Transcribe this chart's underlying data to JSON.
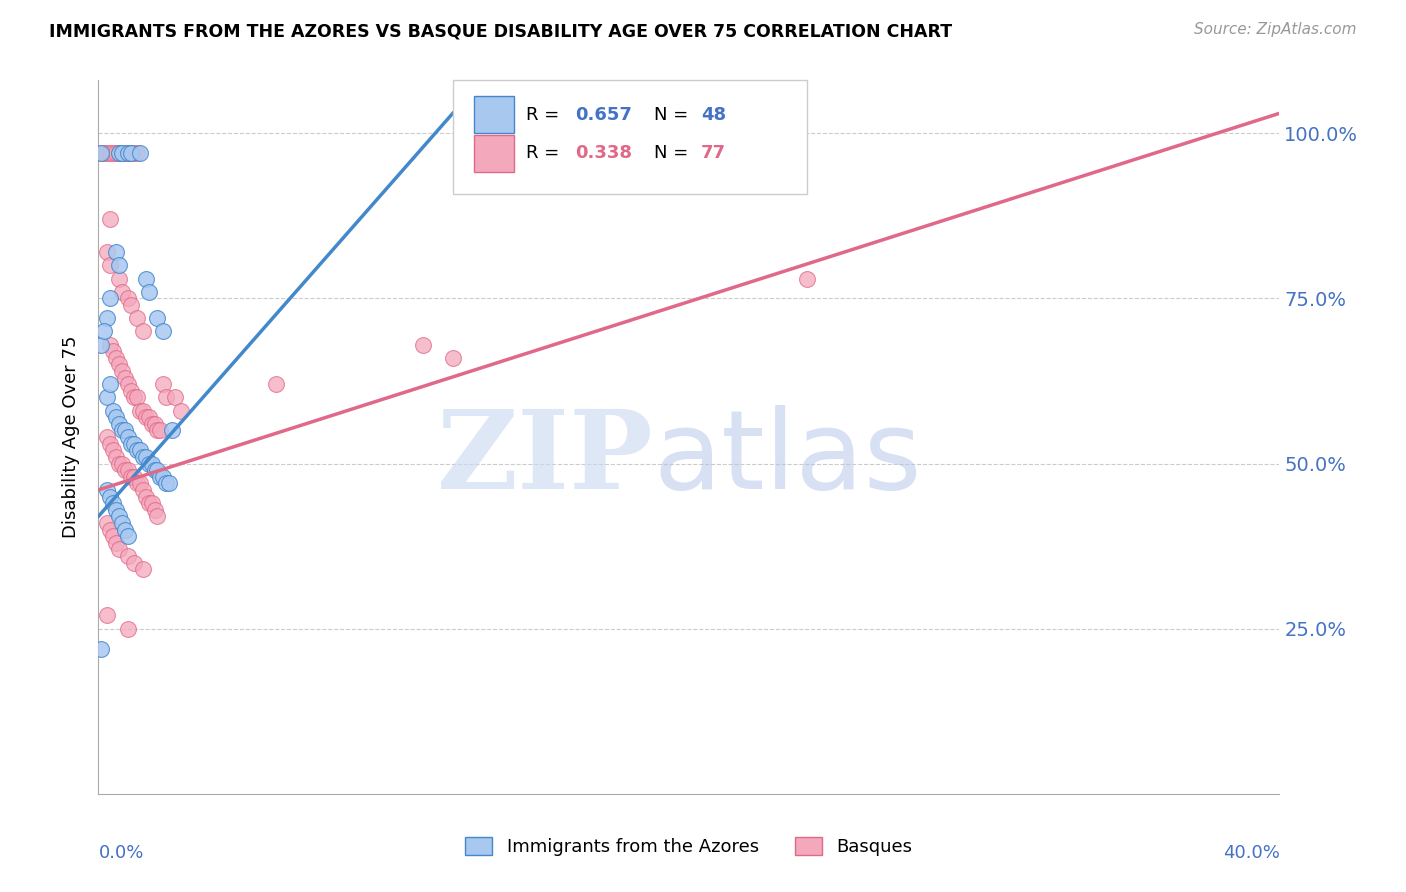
{
  "title": "IMMIGRANTS FROM THE AZORES VS BASQUE DISABILITY AGE OVER 75 CORRELATION CHART",
  "source": "Source: ZipAtlas.com",
  "ylabel": "Disability Age Over 75",
  "xlim": [
    0.0,
    0.4
  ],
  "ylim": [
    0.0,
    1.08
  ],
  "yticks": [
    0.25,
    0.5,
    0.75,
    1.0
  ],
  "ytick_labels": [
    "25.0%",
    "50.0%",
    "75.0%",
    "100.0%"
  ],
  "color_blue": "#A8C8F0",
  "color_pink": "#F4A8BC",
  "line_blue": "#4488CC",
  "line_pink": "#E06888",
  "trendline_blue_x0": 0.0,
  "trendline_blue_y0": 0.42,
  "trendline_blue_x1": 0.12,
  "trendline_blue_y1": 1.03,
  "trendline_pink_x0": 0.0,
  "trendline_pink_y0": 0.46,
  "trendline_pink_x1": 0.4,
  "trendline_pink_y1": 1.03,
  "azores_points": [
    [
      0.001,
      0.97
    ],
    [
      0.007,
      0.97
    ],
    [
      0.008,
      0.97
    ],
    [
      0.01,
      0.97
    ],
    [
      0.011,
      0.97
    ],
    [
      0.014,
      0.97
    ],
    [
      0.003,
      0.72
    ],
    [
      0.004,
      0.75
    ],
    [
      0.006,
      0.82
    ],
    [
      0.007,
      0.8
    ],
    [
      0.016,
      0.78
    ],
    [
      0.017,
      0.76
    ],
    [
      0.02,
      0.72
    ],
    [
      0.022,
      0.7
    ],
    [
      0.001,
      0.68
    ],
    [
      0.002,
      0.7
    ],
    [
      0.003,
      0.6
    ],
    [
      0.004,
      0.62
    ],
    [
      0.005,
      0.58
    ],
    [
      0.006,
      0.57
    ],
    [
      0.007,
      0.56
    ],
    [
      0.008,
      0.55
    ],
    [
      0.009,
      0.55
    ],
    [
      0.01,
      0.54
    ],
    [
      0.011,
      0.53
    ],
    [
      0.012,
      0.53
    ],
    [
      0.013,
      0.52
    ],
    [
      0.014,
      0.52
    ],
    [
      0.015,
      0.51
    ],
    [
      0.016,
      0.51
    ],
    [
      0.017,
      0.5
    ],
    [
      0.018,
      0.5
    ],
    [
      0.019,
      0.49
    ],
    [
      0.02,
      0.49
    ],
    [
      0.021,
      0.48
    ],
    [
      0.022,
      0.48
    ],
    [
      0.023,
      0.47
    ],
    [
      0.024,
      0.47
    ],
    [
      0.003,
      0.46
    ],
    [
      0.004,
      0.45
    ],
    [
      0.005,
      0.44
    ],
    [
      0.006,
      0.43
    ],
    [
      0.007,
      0.42
    ],
    [
      0.008,
      0.41
    ],
    [
      0.009,
      0.4
    ],
    [
      0.01,
      0.39
    ],
    [
      0.001,
      0.22
    ],
    [
      0.025,
      0.55
    ]
  ],
  "basque_points": [
    [
      0.001,
      0.97
    ],
    [
      0.002,
      0.97
    ],
    [
      0.003,
      0.97
    ],
    [
      0.004,
      0.97
    ],
    [
      0.005,
      0.97
    ],
    [
      0.006,
      0.97
    ],
    [
      0.007,
      0.97
    ],
    [
      0.008,
      0.97
    ],
    [
      0.009,
      0.97
    ],
    [
      0.01,
      0.97
    ],
    [
      0.011,
      0.97
    ],
    [
      0.012,
      0.97
    ],
    [
      0.013,
      0.97
    ],
    [
      0.004,
      0.87
    ],
    [
      0.003,
      0.82
    ],
    [
      0.004,
      0.8
    ],
    [
      0.007,
      0.78
    ],
    [
      0.008,
      0.76
    ],
    [
      0.01,
      0.75
    ],
    [
      0.011,
      0.74
    ],
    [
      0.013,
      0.72
    ],
    [
      0.015,
      0.7
    ],
    [
      0.004,
      0.68
    ],
    [
      0.005,
      0.67
    ],
    [
      0.006,
      0.66
    ],
    [
      0.007,
      0.65
    ],
    [
      0.008,
      0.64
    ],
    [
      0.009,
      0.63
    ],
    [
      0.01,
      0.62
    ],
    [
      0.011,
      0.61
    ],
    [
      0.012,
      0.6
    ],
    [
      0.013,
      0.6
    ],
    [
      0.014,
      0.58
    ],
    [
      0.015,
      0.58
    ],
    [
      0.016,
      0.57
    ],
    [
      0.017,
      0.57
    ],
    [
      0.018,
      0.56
    ],
    [
      0.019,
      0.56
    ],
    [
      0.02,
      0.55
    ],
    [
      0.021,
      0.55
    ],
    [
      0.003,
      0.54
    ],
    [
      0.004,
      0.53
    ],
    [
      0.005,
      0.52
    ],
    [
      0.006,
      0.51
    ],
    [
      0.007,
      0.5
    ],
    [
      0.008,
      0.5
    ],
    [
      0.009,
      0.49
    ],
    [
      0.01,
      0.49
    ],
    [
      0.011,
      0.48
    ],
    [
      0.012,
      0.48
    ],
    [
      0.013,
      0.47
    ],
    [
      0.014,
      0.47
    ],
    [
      0.015,
      0.46
    ],
    [
      0.016,
      0.45
    ],
    [
      0.017,
      0.44
    ],
    [
      0.018,
      0.44
    ],
    [
      0.019,
      0.43
    ],
    [
      0.02,
      0.42
    ],
    [
      0.003,
      0.41
    ],
    [
      0.004,
      0.4
    ],
    [
      0.005,
      0.39
    ],
    [
      0.006,
      0.38
    ],
    [
      0.007,
      0.37
    ],
    [
      0.01,
      0.36
    ],
    [
      0.012,
      0.35
    ],
    [
      0.015,
      0.34
    ],
    [
      0.003,
      0.27
    ],
    [
      0.01,
      0.25
    ],
    [
      0.022,
      0.62
    ],
    [
      0.023,
      0.6
    ],
    [
      0.026,
      0.6
    ],
    [
      0.028,
      0.58
    ],
    [
      0.24,
      0.78
    ],
    [
      0.11,
      0.68
    ],
    [
      0.12,
      0.66
    ],
    [
      0.06,
      0.62
    ]
  ]
}
